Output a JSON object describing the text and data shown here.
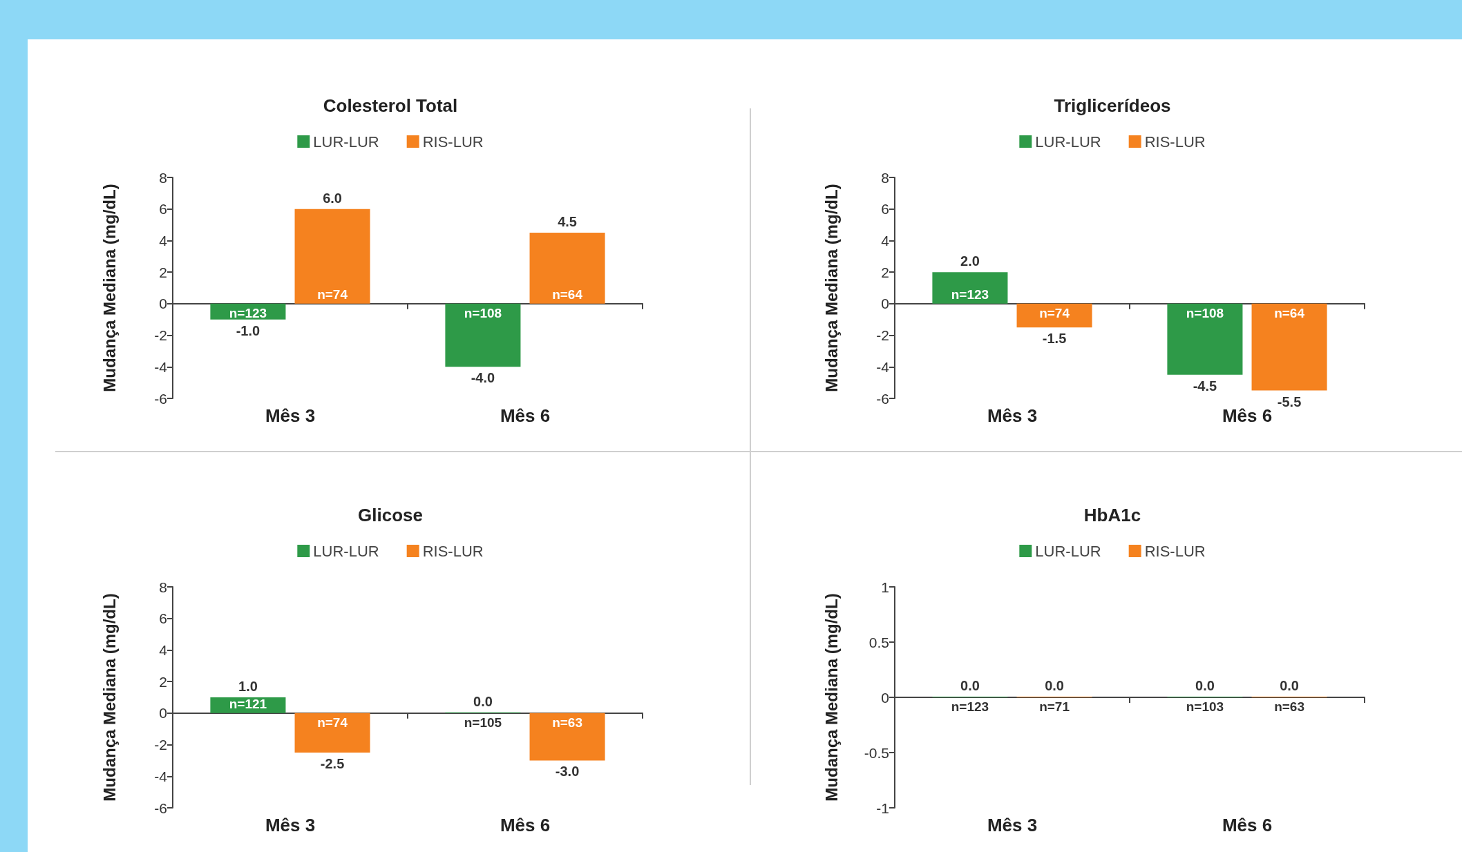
{
  "chart_data": [
    {
      "type": "bar",
      "title": "Colesterol Total",
      "ylabel": "Mudança Mediana (mg/dL)",
      "categories": [
        "Mês 3",
        "Mês 6"
      ],
      "ylim": [
        -6,
        8
      ],
      "yticks": [
        -6,
        -4,
        -2,
        0,
        2,
        4,
        6,
        8
      ],
      "legend": "top",
      "series": [
        {
          "name": "LUR-LUR",
          "color": "#2e9a48",
          "values": [
            -1.0,
            -4.0
          ],
          "value_labels": [
            "-1.0",
            "-4.0"
          ]
        },
        {
          "name": "RIS-LUR",
          "color": "#f5821f",
          "values": [
            6.0,
            4.5
          ],
          "value_labels": [
            "6.0",
            "4.5"
          ]
        }
      ],
      "annotations": [
        "n=123",
        "n=74",
        "n=108",
        "n=64"
      ]
    },
    {
      "type": "bar",
      "title": "Triglicerídeos",
      "ylabel": "Mudança Mediana (mg/dL)",
      "categories": [
        "Mês 3",
        "Mês 6"
      ],
      "ylim": [
        -6,
        8
      ],
      "yticks": [
        -6,
        -4,
        -2,
        0,
        2,
        4,
        6,
        8
      ],
      "legend": "top",
      "series": [
        {
          "name": "LUR-LUR",
          "color": "#2e9a48",
          "values": [
            2.0,
            -4.5
          ],
          "value_labels": [
            "2.0",
            "-4.5"
          ]
        },
        {
          "name": "RIS-LUR",
          "color": "#f5821f",
          "values": [
            -1.5,
            -5.5
          ],
          "value_labels": [
            "-1.5",
            "-5.5"
          ]
        }
      ],
      "annotations": [
        "n=123",
        "n=74",
        "n=108",
        "n=64"
      ]
    },
    {
      "type": "bar",
      "title": "Glicose",
      "ylabel": "Mudança Mediana (mg/dL)",
      "categories": [
        "Mês 3",
        "Mês 6"
      ],
      "ylim": [
        -6,
        8
      ],
      "yticks": [
        -6,
        -4,
        -2,
        0,
        2,
        4,
        6,
        8
      ],
      "legend": "top",
      "series": [
        {
          "name": "LUR-LUR",
          "color": "#2e9a48",
          "values": [
            1.0,
            0.0
          ],
          "value_labels": [
            "1.0",
            "0.0"
          ]
        },
        {
          "name": "RIS-LUR",
          "color": "#f5821f",
          "values": [
            -2.5,
            -3.0
          ],
          "value_labels": [
            "-2.5",
            "-3.0"
          ]
        }
      ],
      "annotations": [
        "n=121",
        "n=74",
        "n=105",
        "n=63"
      ]
    },
    {
      "type": "bar",
      "title": "HbA1c",
      "ylabel": "Mudança Mediana (mg/dL)",
      "categories": [
        "Mês 3",
        "Mês 6"
      ],
      "ylim": [
        -1,
        1
      ],
      "yticks": [
        -1,
        -0.5,
        0,
        0.5,
        1
      ],
      "legend": "top",
      "series": [
        {
          "name": "LUR-LUR",
          "color": "#2e9a48",
          "values": [
            0.0,
            0.0
          ],
          "value_labels": [
            "0.0",
            "0.0"
          ]
        },
        {
          "name": "RIS-LUR",
          "color": "#f5821f",
          "values": [
            0.0,
            0.0
          ],
          "value_labels": [
            "0.0",
            "0.0"
          ]
        }
      ],
      "annotations": [
        "n=123",
        "n=71",
        "n=103",
        "n=63"
      ]
    }
  ]
}
